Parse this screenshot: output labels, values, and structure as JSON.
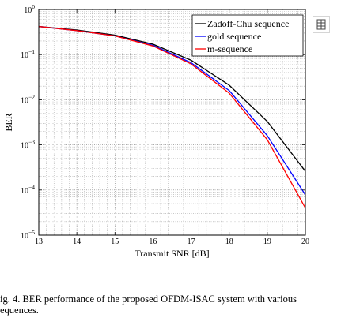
{
  "chart_data": {
    "type": "line",
    "xlabel": "Transmit SNR [dB]",
    "ylabel": "BER",
    "xlim": [
      13,
      20
    ],
    "ylim": [
      1e-05,
      1
    ],
    "yscale": "log",
    "grid": "major and minor, dotted",
    "legend_position": "top-right",
    "x": [
      13,
      14,
      15,
      16,
      17,
      18,
      19,
      20
    ],
    "x_ticks": [
      "13",
      "14",
      "15",
      "16",
      "17",
      "18",
      "19",
      "20"
    ],
    "y_ticks": [
      {
        "base": "10",
        "exp": "0",
        "value": 1
      },
      {
        "base": "10",
        "exp": "−1",
        "value": 0.1
      },
      {
        "base": "10",
        "exp": "−2",
        "value": 0.01
      },
      {
        "base": "10",
        "exp": "−3",
        "value": 0.001
      },
      {
        "base": "10",
        "exp": "−4",
        "value": 0.0001
      },
      {
        "base": "10",
        "exp": "−5",
        "value": 1e-05
      }
    ],
    "series": [
      {
        "name": "Zadoff-Chu sequence",
        "color": "#000000",
        "values": [
          0.42,
          0.35,
          0.27,
          0.17,
          0.075,
          0.021,
          0.0033,
          0.00026
        ]
      },
      {
        "name": "gold sequence",
        "color": "#0000ff",
        "values": [
          0.42,
          0.34,
          0.26,
          0.16,
          0.066,
          0.016,
          0.0016,
          7.8e-05
        ]
      },
      {
        "name": "m-sequence",
        "color": "#ff0000",
        "values": [
          0.42,
          0.34,
          0.26,
          0.155,
          0.062,
          0.014,
          0.0013,
          4e-05
        ]
      }
    ]
  },
  "caption": {
    "line1": "ig. 4.  BER performance of the proposed OFDM-ISAC system with various",
    "line2": "equences."
  },
  "icons": {
    "table": "table-icon"
  }
}
